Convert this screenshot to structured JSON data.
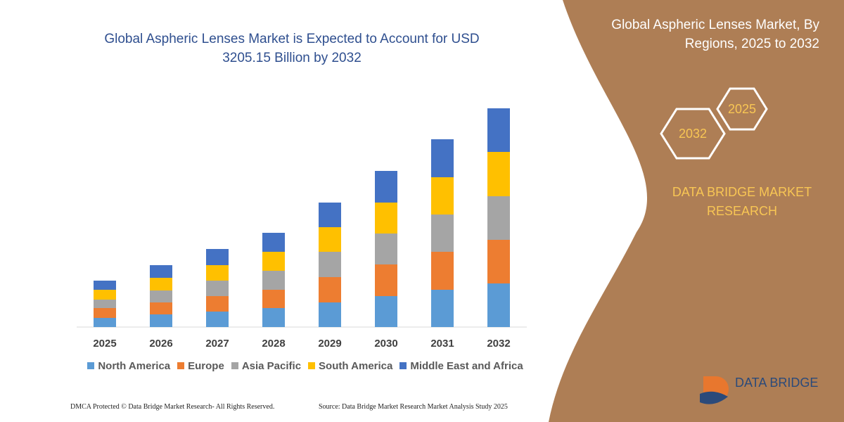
{
  "chart_data": {
    "type": "stacked-bar",
    "title": "Global Aspheric Lenses Market is Expected to Account for USD 3205.15 Billion by 2032",
    "categories": [
      "2025",
      "2026",
      "2027",
      "2028",
      "2029",
      "2030",
      "2031",
      "2032"
    ],
    "series": [
      {
        "name": "North America",
        "color": "#5b9bd5",
        "values": [
          13,
          18,
          22,
          27,
          35,
          44,
          53,
          62
        ]
      },
      {
        "name": "Europe",
        "color": "#ed7d31",
        "values": [
          14,
          17,
          22,
          26,
          36,
          45,
          54,
          62
        ]
      },
      {
        "name": "Asia Pacific",
        "color": "#a5a5a5",
        "values": [
          12,
          17,
          22,
          27,
          36,
          44,
          53,
          62
        ]
      },
      {
        "name": "South America",
        "color": "#ffc000",
        "values": [
          14,
          18,
          22,
          27,
          35,
          44,
          53,
          63
        ]
      },
      {
        "name": "Middle East and Africa",
        "color": "#4472c4",
        "values": [
          13,
          18,
          23,
          27,
          35,
          45,
          54,
          62
        ]
      }
    ],
    "ylim": [
      0,
      320
    ]
  },
  "panel": {
    "heading": "Global Aspheric Lenses Market, By Regions, 2025 to 2032",
    "hexagons": [
      "2025",
      "2032"
    ],
    "brand": "DATA BRIDGE MARKET RESEARCH",
    "logo": "DATA BRIDGE"
  },
  "footer": {
    "left": "DMCA Protected © Data Bridge Market Research-  All Rights Reserved.",
    "right": "Source: Data Bridge Market Research  Market Analysis Study 2025"
  }
}
